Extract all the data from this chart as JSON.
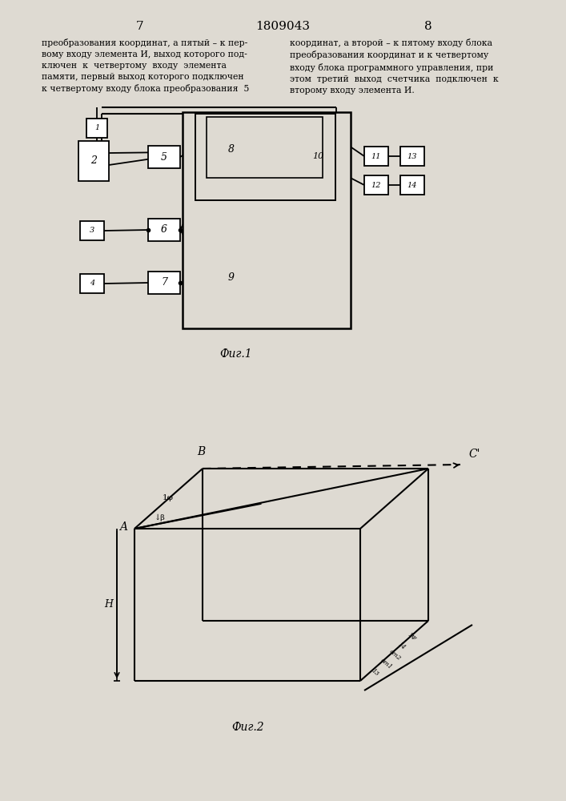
{
  "page_number_left": "7",
  "patent_number": "1809043",
  "page_number_right": "8",
  "text_left": "преобразования координат, а пятый – к пер-\nвому входу элемента И, выход которого под-\nключен  к  четвертому  входу  элемента\nпамяти, первый выход которого подключен\nк четвертому входу блока преобразования  5",
  "text_right": "координат, а второй – к пятому входу блока\nпреобразования координат и к четвертому\nвходу блока программного управления, при\nэтом  третий  выход  счетчика  подключен  к\nвторому входу элемента И.",
  "fig1_caption": "Фиг.1",
  "fig2_caption": "Фиг.2",
  "bg_color": "#dedad2"
}
